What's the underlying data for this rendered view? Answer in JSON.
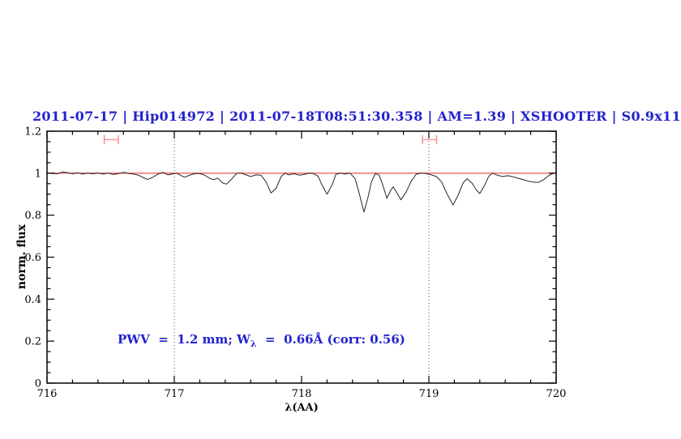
{
  "header": {
    "title": "2011-07-17 | Hip014972 | 2011-07-18T08:51:30.358 | AM=1.39 | XSHOOTER | S0.9x11"
  },
  "annotation": {
    "pre": "PWV  =  1.2 mm; W",
    "sub": "λ",
    "post": "  =  0.66Å (corr: 0.56)"
  },
  "colors": {
    "title_blue": "#2222cc",
    "annotation_blue": "#2222cc",
    "reference_red": "#f26060",
    "marker_red": "#f49898",
    "spectrum": "#262626",
    "dotted_line": "#555555",
    "axis": "#000000"
  },
  "chart_data": {
    "type": "line",
    "title": "2011-07-17 | Hip014972 | 2011-07-18T08:51:30.358 | AM=1.39 | XSHOOTER | S0.9x11",
    "xlabel": "λ(AA)",
    "ylabel": "norm. flux",
    "xlim": [
      716,
      720
    ],
    "ylim": [
      0,
      1.2
    ],
    "xticks_major": [
      716,
      717,
      718,
      719,
      720
    ],
    "xtick_labels": [
      "716",
      "717",
      "718",
      "719",
      "720"
    ],
    "x_minor_step": 0.2,
    "yticks_major": [
      0,
      0.2,
      0.4,
      0.6,
      0.8,
      1.0,
      1.2
    ],
    "ytick_labels": [
      "0",
      "0.2",
      "0.4",
      "0.6",
      "0.8",
      "1",
      "1.2"
    ],
    "y_minor_step": 0.05,
    "grid": "dotted vertical lines at 717 and 719 only",
    "grid_vlines_dotted": [
      717,
      719
    ],
    "reference_line_y": 1.0,
    "legend_position": "none",
    "range_markers": [
      {
        "x1": 716.45,
        "x2": 716.56,
        "y": 1.16,
        "cap_halfheight": 0.022
      },
      {
        "x1": 718.95,
        "x2": 719.06,
        "y": 1.16,
        "cap_halfheight": 0.022
      }
    ],
    "series": [
      {
        "name": "normalized spectrum",
        "points": [
          [
            716.0,
            1.0
          ],
          [
            716.04,
            0.999
          ],
          [
            716.08,
            0.997
          ],
          [
            716.12,
            1.006
          ],
          [
            716.16,
            1.003
          ],
          [
            716.2,
            0.997
          ],
          [
            716.24,
            1.002
          ],
          [
            716.28,
            0.996
          ],
          [
            716.32,
            1.0
          ],
          [
            716.36,
            0.997
          ],
          [
            716.4,
            1.001
          ],
          [
            716.44,
            0.996
          ],
          [
            716.48,
            1.0
          ],
          [
            716.52,
            0.994
          ],
          [
            716.56,
            0.998
          ],
          [
            716.6,
            1.004
          ],
          [
            716.64,
            0.999
          ],
          [
            716.68,
            0.996
          ],
          [
            716.72,
            0.99
          ],
          [
            716.76,
            0.978
          ],
          [
            716.79,
            0.97
          ],
          [
            716.83,
            0.98
          ],
          [
            716.87,
            0.995
          ],
          [
            716.91,
            1.004
          ],
          [
            716.95,
            0.992
          ],
          [
            716.98,
            0.996
          ],
          [
            717.02,
            1.0
          ],
          [
            717.05,
            0.99
          ],
          [
            717.08,
            0.981
          ],
          [
            717.12,
            0.99
          ],
          [
            717.16,
            0.998
          ],
          [
            717.2,
            0.999
          ],
          [
            717.24,
            0.99
          ],
          [
            717.28,
            0.975
          ],
          [
            717.31,
            0.969
          ],
          [
            717.34,
            0.977
          ],
          [
            717.38,
            0.953
          ],
          [
            717.41,
            0.948
          ],
          [
            717.45,
            0.972
          ],
          [
            717.49,
            0.999
          ],
          [
            717.52,
            1.001
          ],
          [
            717.56,
            0.993
          ],
          [
            717.6,
            0.984
          ],
          [
            717.64,
            0.992
          ],
          [
            717.68,
            0.991
          ],
          [
            717.72,
            0.96
          ],
          [
            717.76,
            0.906
          ],
          [
            717.8,
            0.928
          ],
          [
            717.84,
            0.985
          ],
          [
            717.87,
            1.0
          ],
          [
            717.9,
            0.992
          ],
          [
            717.94,
            0.998
          ],
          [
            717.98,
            0.991
          ],
          [
            718.02,
            0.994
          ],
          [
            718.06,
            1.0
          ],
          [
            718.09,
            0.999
          ],
          [
            718.13,
            0.985
          ],
          [
            718.16,
            0.945
          ],
          [
            718.2,
            0.9
          ],
          [
            718.24,
            0.945
          ],
          [
            718.27,
            0.995
          ],
          [
            718.31,
            1.0
          ],
          [
            718.34,
            0.996
          ],
          [
            718.38,
            1.0
          ],
          [
            718.42,
            0.975
          ],
          [
            718.45,
            0.91
          ],
          [
            718.49,
            0.815
          ],
          [
            718.52,
            0.88
          ],
          [
            718.55,
            0.96
          ],
          [
            718.58,
            0.999
          ],
          [
            718.61,
            0.99
          ],
          [
            718.64,
            0.94
          ],
          [
            718.67,
            0.88
          ],
          [
            718.7,
            0.918
          ],
          [
            718.72,
            0.935
          ],
          [
            718.75,
            0.905
          ],
          [
            718.78,
            0.873
          ],
          [
            718.82,
            0.908
          ],
          [
            718.86,
            0.96
          ],
          [
            718.9,
            0.995
          ],
          [
            718.94,
            1.001
          ],
          [
            718.98,
            0.998
          ],
          [
            719.02,
            0.992
          ],
          [
            719.06,
            0.984
          ],
          [
            719.1,
            0.958
          ],
          [
            719.14,
            0.905
          ],
          [
            719.19,
            0.848
          ],
          [
            719.23,
            0.895
          ],
          [
            719.27,
            0.955
          ],
          [
            719.3,
            0.974
          ],
          [
            719.34,
            0.952
          ],
          [
            719.37,
            0.922
          ],
          [
            719.4,
            0.903
          ],
          [
            719.44,
            0.945
          ],
          [
            719.47,
            0.985
          ],
          [
            719.5,
            1.0
          ],
          [
            719.54,
            0.99
          ],
          [
            719.58,
            0.984
          ],
          [
            719.62,
            0.988
          ],
          [
            719.66,
            0.983
          ],
          [
            719.7,
            0.976
          ],
          [
            719.74,
            0.97
          ],
          [
            719.78,
            0.962
          ],
          [
            719.82,
            0.958
          ],
          [
            719.86,
            0.956
          ],
          [
            719.9,
            0.968
          ],
          [
            719.94,
            0.988
          ],
          [
            719.97,
            0.998
          ],
          [
            720.0,
            1.0
          ]
        ]
      }
    ]
  }
}
